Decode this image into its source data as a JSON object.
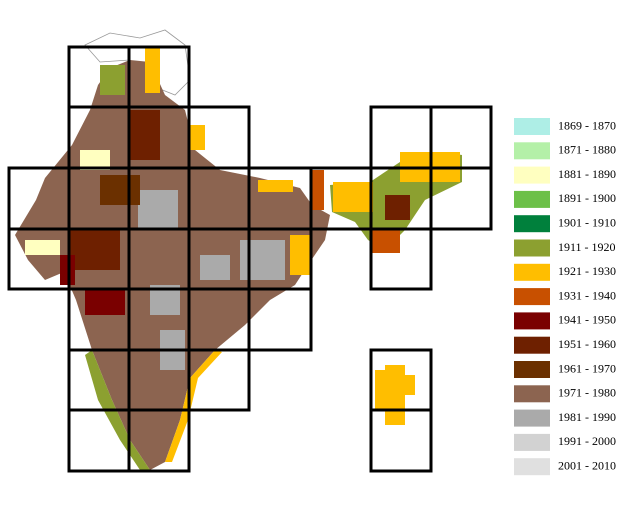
{
  "legend": {
    "items": [
      {
        "label": "1869 - 1870",
        "color": "#aeeee6"
      },
      {
        "label": "1871 - 1880",
        "color": "#b4f0a8"
      },
      {
        "label": "1881 - 1890",
        "color": "#ffffc0"
      },
      {
        "label": "1891 - 1900",
        "color": "#6cc048"
      },
      {
        "label": "1901 - 1910",
        "color": "#00803c"
      },
      {
        "label": "1911 - 1920",
        "color": "#8ca030"
      },
      {
        "label": "1921 - 1930",
        "color": "#ffbe00"
      },
      {
        "label": "1931 - 1940",
        "color": "#c85000"
      },
      {
        "label": "1941 - 1950",
        "color": "#7a0000"
      },
      {
        "label": "1951 - 1960",
        "color": "#6e2000"
      },
      {
        "label": "1961 - 1970",
        "color": "#6b3000"
      },
      {
        "label": "1971 - 1980",
        "color": "#8c6450"
      },
      {
        "label": "1981 - 1990",
        "color": "#aaaaaa"
      },
      {
        "label": "1991 - 2000",
        "color": "#d2d2d2"
      },
      {
        "label": "2001 - 2010",
        "color": "#e0e0e0"
      }
    ]
  }
}
